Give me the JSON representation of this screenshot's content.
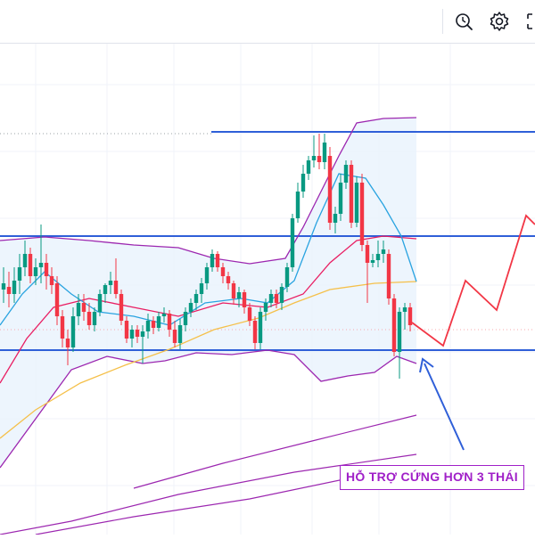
{
  "toolbar": {
    "icons": [
      "magnifier-replay-icon",
      "gear-icon",
      "fullscreen-icon"
    ]
  },
  "colors": {
    "support_line": "#2f5fd8",
    "candle_up": "#089981",
    "candle_down": "#f23645",
    "bollinger": "#9c27b0",
    "ma_fast": "#e91e63",
    "ma_mid": "#29a3e0",
    "ma_slow": "#f5c04a",
    "projection": "#f23645",
    "arrow": "#2f5fd8",
    "annotation": "#a020c8"
  },
  "annotation": {
    "text": "HỖ TRỢ CỨNG HƠN 3 THÁI"
  }
}
